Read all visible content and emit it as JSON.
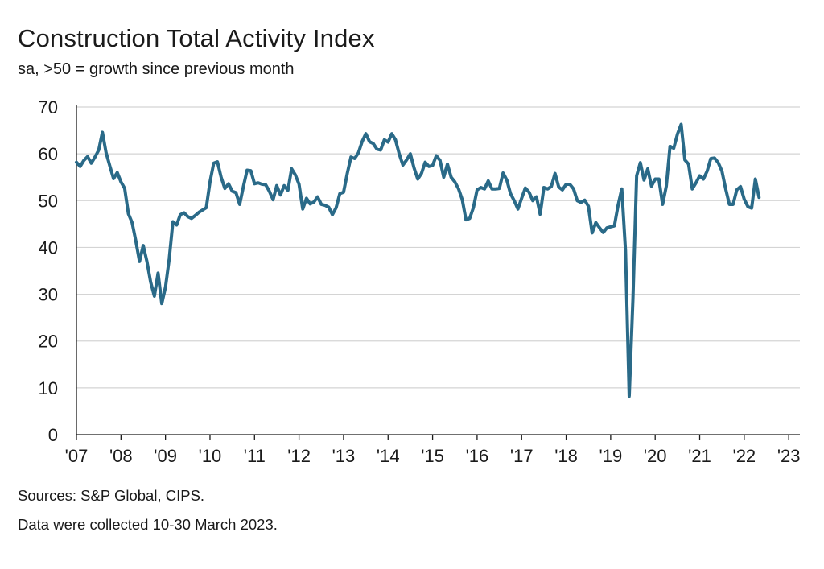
{
  "chart_data": {
    "type": "line",
    "title": "Construction Total Activity Index",
    "subtitle": "sa, >50 = growth since previous month",
    "xlabel": "",
    "ylabel": "",
    "ylim": [
      0,
      70
    ],
    "yticks": [
      "0",
      "10",
      "20",
      "30",
      "40",
      "50",
      "60",
      "70"
    ],
    "xticks": [
      "'07",
      "'08",
      "'09",
      "'10",
      "'11",
      "'12",
      "'13",
      "'14",
      "'15",
      "'16",
      "'17",
      "'18",
      "'19",
      "'20",
      "'21",
      "'22",
      "'23"
    ],
    "grid": true,
    "series_color": "#2a6a88",
    "series": [
      {
        "name": "Construction Total Activity Index",
        "x_start_year": 2007,
        "x_step_years": 0.08333333,
        "values": [
          58.2,
          57.3,
          58.6,
          59.4,
          58.0,
          59.3,
          60.8,
          64.6,
          60.2,
          57.4,
          54.7,
          56.0,
          54.0,
          52.6,
          47.2,
          45.3,
          41.4,
          37.0,
          40.4,
          37.0,
          32.6,
          29.6,
          34.5,
          28.0,
          31.5,
          37.5,
          45.5,
          44.8,
          47.0,
          47.4,
          46.6,
          46.2,
          46.8,
          47.5,
          48.0,
          48.5,
          54.0,
          58.0,
          58.3,
          55.0,
          52.6,
          53.6,
          52.0,
          51.7,
          49.2,
          53.0,
          56.5,
          56.4,
          53.6,
          53.8,
          53.5,
          53.4,
          52.0,
          50.2,
          53.2,
          51.2,
          53.2,
          52.2,
          56.8,
          55.5,
          53.5,
          48.2,
          50.5,
          49.3,
          49.7,
          50.8,
          49.2,
          49.0,
          48.6,
          47.0,
          48.5,
          51.5,
          51.8,
          55.8,
          59.3,
          59.0,
          60.2,
          62.6,
          64.3,
          62.6,
          62.2,
          61.0,
          60.8,
          63.0,
          62.5,
          64.3,
          63.0,
          60.0,
          57.6,
          58.7,
          60.0,
          57.0,
          54.6,
          55.8,
          58.2,
          57.3,
          57.5,
          59.6,
          58.6,
          55.0,
          57.8,
          55.0,
          54.0,
          52.5,
          50.2,
          45.9,
          46.2,
          48.5,
          52.3,
          52.8,
          52.5,
          54.2,
          52.5,
          52.5,
          52.6,
          55.9,
          54.4,
          51.5,
          50.0,
          48.2,
          50.5,
          52.7,
          51.8,
          50.0,
          50.8,
          47.1,
          52.8,
          52.5,
          53.0,
          55.8,
          52.9,
          52.3,
          53.5,
          53.5,
          52.5,
          50.0,
          49.6,
          50.1,
          48.8,
          43.1,
          45.3,
          44.2,
          43.2,
          44.2,
          44.4,
          44.6,
          49.0,
          52.5,
          39.3,
          8.2,
          28.9,
          55.3,
          58.1,
          54.4,
          56.8,
          53.1,
          54.6,
          54.6,
          49.2,
          53.1,
          61.6,
          61.2,
          64.2,
          66.3,
          58.7,
          57.8,
          52.5,
          53.8,
          55.3,
          54.6,
          56.3,
          59.0,
          59.1,
          58.1,
          56.3,
          52.5,
          49.2,
          49.2,
          52.3,
          53.0,
          50.3,
          48.7,
          48.4,
          54.6,
          50.7
        ]
      }
    ]
  },
  "footer": {
    "sources": "Sources: S&P Global, CIPS.",
    "collected": "Data were collected 10-30 March 2023."
  }
}
